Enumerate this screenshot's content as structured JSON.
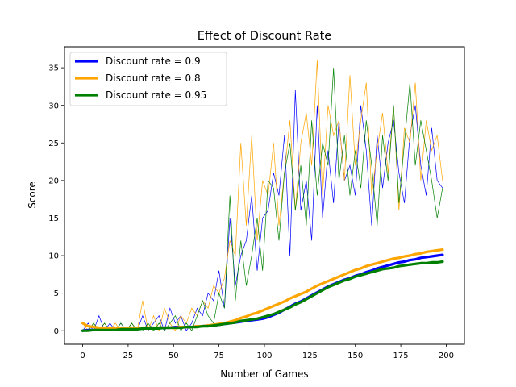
{
  "chart_data": {
    "type": "line",
    "title": "Effect of Discount Rate",
    "xlabel": "Number of Games",
    "ylabel": "Score",
    "xlim": [
      -10,
      210
    ],
    "ylim": [
      -1.8,
      37.8
    ],
    "xticks": [
      0,
      25,
      50,
      75,
      100,
      125,
      150,
      175,
      200
    ],
    "yticks": [
      0,
      5,
      10,
      15,
      20,
      25,
      30,
      35
    ],
    "grid": false,
    "legend_position": "top-left",
    "x": [
      0,
      3,
      6,
      9,
      12,
      15,
      18,
      21,
      24,
      27,
      30,
      33,
      36,
      39,
      42,
      45,
      48,
      51,
      54,
      57,
      60,
      63,
      66,
      69,
      72,
      75,
      78,
      81,
      84,
      87,
      90,
      93,
      96,
      99,
      102,
      105,
      108,
      111,
      114,
      117,
      120,
      123,
      126,
      129,
      132,
      135,
      138,
      141,
      144,
      147,
      150,
      153,
      156,
      159,
      162,
      165,
      168,
      171,
      174,
      177,
      180,
      183,
      186,
      189,
      192,
      195,
      198
    ],
    "series": [
      {
        "name": "Discount rate = 0.9",
        "color": "#0000ff",
        "scores": [
          0,
          1,
          0,
          2,
          0,
          1,
          0,
          1,
          0,
          1,
          0,
          2,
          0,
          1,
          2,
          0,
          3,
          1,
          2,
          0,
          1,
          3,
          2,
          5,
          4,
          8,
          3,
          15,
          6,
          10,
          12,
          18,
          8,
          15,
          16,
          21,
          18,
          26,
          10,
          32,
          16,
          20,
          12,
          30,
          15,
          24,
          17,
          28,
          20,
          22,
          18,
          30,
          24,
          14,
          26,
          19,
          25,
          28,
          21,
          17,
          26,
          30,
          22,
          18,
          27,
          20,
          19
        ],
        "average": [
          0,
          0.1,
          0.1,
          0.1,
          0.1,
          0.1,
          0.1,
          0.2,
          0.2,
          0.2,
          0.3,
          0.3,
          0.3,
          0.3,
          0.4,
          0.4,
          0.4,
          0.5,
          0.5,
          0.5,
          0.5,
          0.6,
          0.6,
          0.7,
          0.7,
          0.8,
          0.9,
          1.0,
          1.1,
          1.2,
          1.3,
          1.4,
          1.5,
          1.6,
          1.8,
          2.1,
          2.4,
          2.8,
          3.2,
          3.6,
          3.9,
          4.3,
          4.7,
          5.1,
          5.5,
          5.9,
          6.2,
          6.5,
          6.8,
          7.0,
          7.3,
          7.5,
          7.8,
          8.0,
          8.3,
          8.5,
          8.7,
          8.9,
          9.1,
          9.2,
          9.4,
          9.5,
          9.7,
          9.8,
          9.9,
          10.0,
          10.1
        ]
      },
      {
        "name": "Discount rate = 0.8",
        "color": "#ffa500",
        "scores": [
          1,
          0,
          1,
          0,
          1,
          0,
          1,
          0,
          0,
          1,
          0,
          4,
          0,
          2,
          0,
          3,
          1,
          0,
          2,
          1,
          3,
          2,
          4,
          3,
          6,
          5,
          7,
          12,
          10,
          25,
          14,
          26,
          12,
          20,
          18,
          25,
          14,
          21,
          28,
          16,
          25,
          29,
          22,
          36,
          18,
          30,
          26,
          28,
          20,
          34,
          22,
          28,
          33,
          18,
          24,
          29,
          21,
          30,
          16,
          27,
          25,
          33,
          20,
          28,
          24,
          26,
          20
        ],
        "average": [
          1.0,
          0.6,
          0.5,
          0.4,
          0.4,
          0.3,
          0.3,
          0.3,
          0.3,
          0.3,
          0.3,
          0.4,
          0.4,
          0.4,
          0.4,
          0.4,
          0.4,
          0.4,
          0.5,
          0.5,
          0.5,
          0.6,
          0.6,
          0.7,
          0.8,
          0.9,
          1.0,
          1.2,
          1.4,
          1.7,
          1.9,
          2.2,
          2.4,
          2.7,
          3.0,
          3.3,
          3.6,
          3.9,
          4.3,
          4.6,
          4.9,
          5.2,
          5.6,
          6.0,
          6.3,
          6.6,
          6.9,
          7.2,
          7.5,
          7.8,
          8.1,
          8.3,
          8.6,
          8.8,
          9.0,
          9.2,
          9.4,
          9.6,
          9.7,
          9.9,
          10.0,
          10.2,
          10.3,
          10.5,
          10.6,
          10.7,
          10.8
        ]
      },
      {
        "name": "Discount rate = 0.95",
        "color": "#008000",
        "scores": [
          0,
          0,
          1,
          0,
          1,
          0,
          0,
          1,
          0,
          1,
          0,
          0,
          1,
          0,
          1,
          0,
          1,
          2,
          0,
          1,
          0,
          2,
          4,
          2,
          1,
          5,
          3,
          18,
          4,
          12,
          6,
          10,
          15,
          8,
          20,
          19,
          12,
          21,
          25,
          16,
          22,
          14,
          28,
          18,
          25,
          22,
          35,
          20,
          26,
          18,
          24,
          19,
          28,
          22,
          14,
          26,
          20,
          30,
          17,
          25,
          33,
          22,
          28,
          24,
          20,
          15,
          19
        ],
        "average": [
          0,
          0,
          0.1,
          0.1,
          0.1,
          0.1,
          0.1,
          0.2,
          0.2,
          0.2,
          0.2,
          0.3,
          0.3,
          0.3,
          0.3,
          0.4,
          0.4,
          0.4,
          0.4,
          0.5,
          0.5,
          0.5,
          0.6,
          0.6,
          0.7,
          0.8,
          0.9,
          1.0,
          1.1,
          1.3,
          1.4,
          1.5,
          1.6,
          1.8,
          2.0,
          2.2,
          2.5,
          2.8,
          3.1,
          3.5,
          3.8,
          4.2,
          4.6,
          5.0,
          5.4,
          5.8,
          6.1,
          6.4,
          6.7,
          6.9,
          7.2,
          7.4,
          7.6,
          7.8,
          8.0,
          8.2,
          8.3,
          8.4,
          8.6,
          8.7,
          8.8,
          8.9,
          9.0,
          9.0,
          9.1,
          9.1,
          9.2
        ]
      }
    ]
  }
}
